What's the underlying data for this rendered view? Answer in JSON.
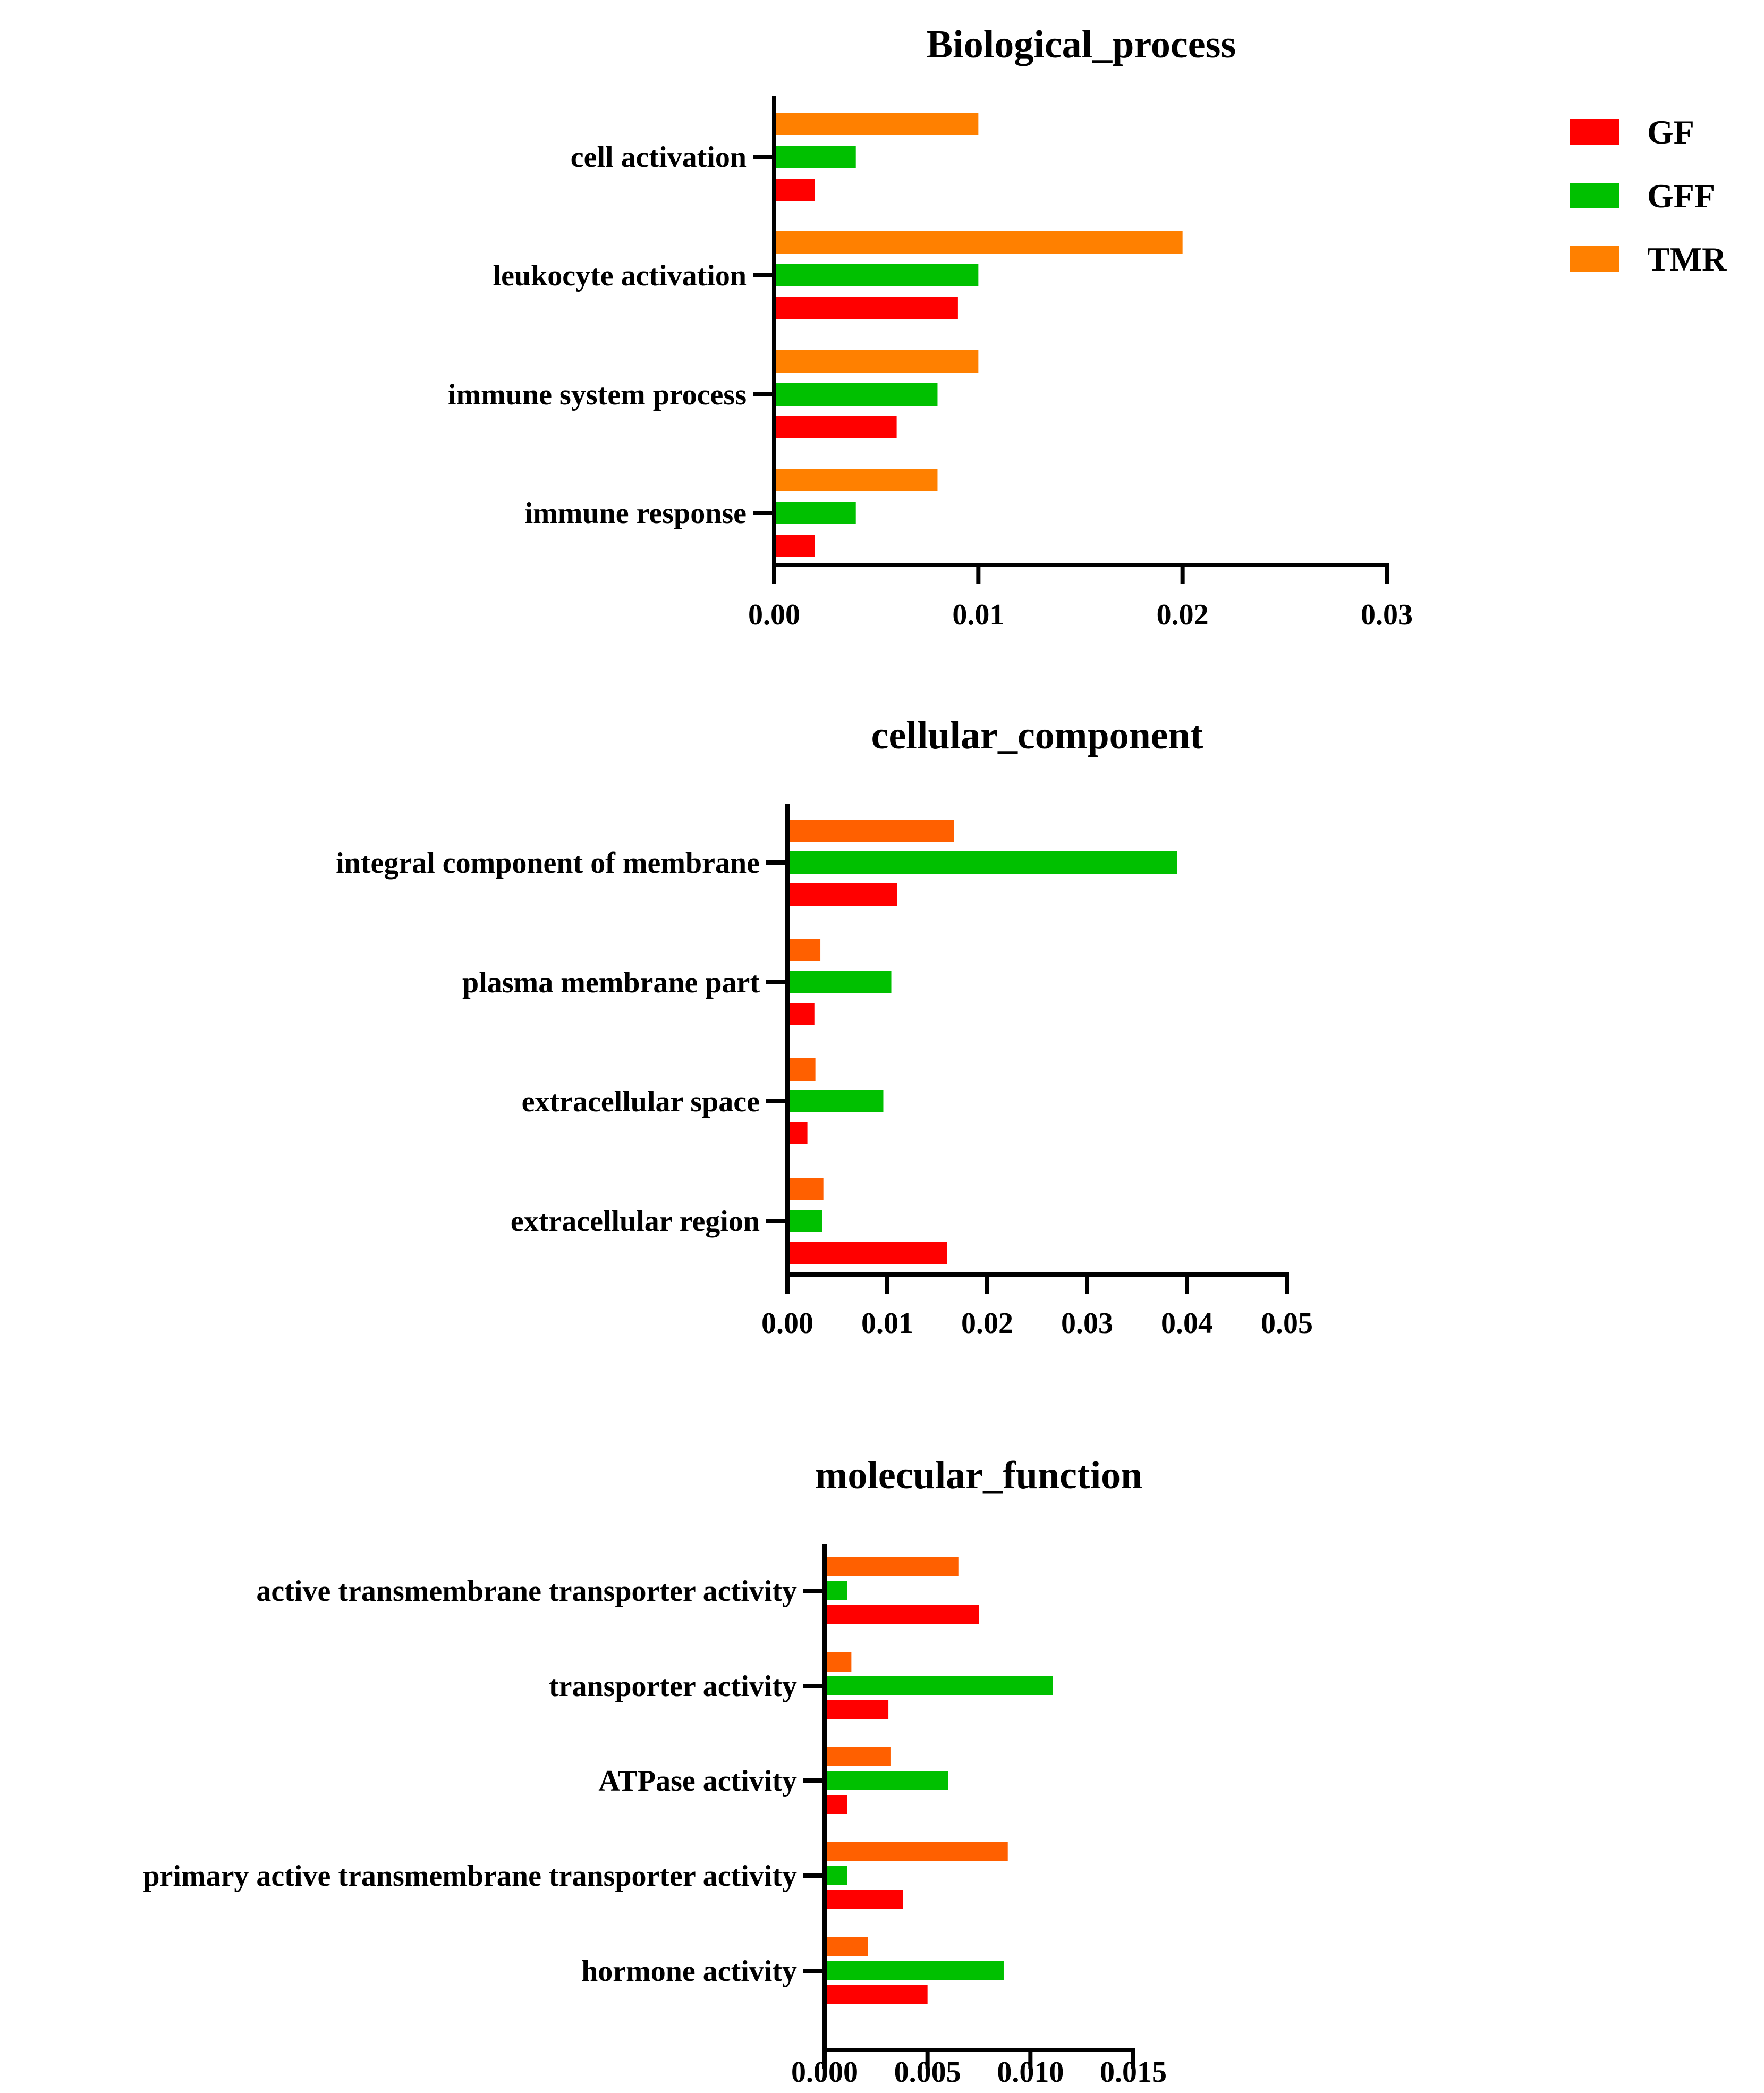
{
  "legend": {
    "items": [
      {
        "label": "GF",
        "color": "#ff0000"
      },
      {
        "label": "GFF",
        "color": "#00c000"
      },
      {
        "label": "TMR",
        "color": "#ff8000"
      }
    ]
  },
  "chart_data": [
    {
      "type": "bar",
      "orientation": "horizontal",
      "title": "Biological_process",
      "categories": [
        "cell activation",
        "leukocyte activation",
        "immune system process",
        "immune response"
      ],
      "series": [
        {
          "name": "GF",
          "color": "#ff0000",
          "values": [
            0.002,
            0.009,
            0.006,
            0.002
          ]
        },
        {
          "name": "GFF",
          "color": "#00c000",
          "values": [
            0.004,
            0.01,
            0.008,
            0.004
          ]
        },
        {
          "name": "TMR",
          "color": "#ff8000",
          "values": [
            0.01,
            0.02,
            0.01,
            0.008
          ]
        }
      ],
      "xlim": [
        0,
        0.03
      ],
      "xticks": [
        "0.00",
        "0.01",
        "0.02",
        "0.03"
      ],
      "grid": false,
      "legend": "top-right"
    },
    {
      "type": "bar",
      "orientation": "horizontal",
      "title": "cellular_component",
      "categories": [
        "integral component of membrane",
        "plasma membrane part",
        "extracellular space",
        "extracellular region"
      ],
      "series": [
        {
          "name": "GF",
          "color": "#ff0000",
          "values": [
            0.011,
            0.0027,
            0.002,
            0.016
          ]
        },
        {
          "name": "GFF",
          "color": "#00c000",
          "values": [
            0.039,
            0.0104,
            0.0096,
            0.0035
          ]
        },
        {
          "name": "TMR",
          "color": "#ff6000",
          "values": [
            0.0167,
            0.0033,
            0.0028,
            0.0036
          ]
        }
      ],
      "xlim": [
        0,
        0.05
      ],
      "xticks": [
        "0.00",
        "0.01",
        "0.02",
        "0.03",
        "0.04",
        "0.05"
      ],
      "grid": false
    },
    {
      "type": "bar",
      "orientation": "horizontal",
      "title": "molecular_function",
      "categories": [
        "active transmembrane transporter activity",
        "transporter activity",
        "ATPase activity",
        "primary active transmembrane transporter activity",
        "hormone activity"
      ],
      "series": [
        {
          "name": "GF",
          "color": "#ff0000",
          "values": [
            0.0075,
            0.0031,
            0.0011,
            0.0038,
            0.005
          ]
        },
        {
          "name": "GFF",
          "color": "#00c000",
          "values": [
            0.0011,
            0.0111,
            0.006,
            0.0011,
            0.0087
          ]
        },
        {
          "name": "TMR",
          "color": "#ff6000",
          "values": [
            0.0065,
            0.0013,
            0.0032,
            0.0089,
            0.0021
          ]
        }
      ],
      "xlim": [
        0,
        0.015
      ],
      "xticks": [
        "0.000",
        "0.005",
        "0.010",
        "0.015"
      ],
      "grid": false
    }
  ]
}
